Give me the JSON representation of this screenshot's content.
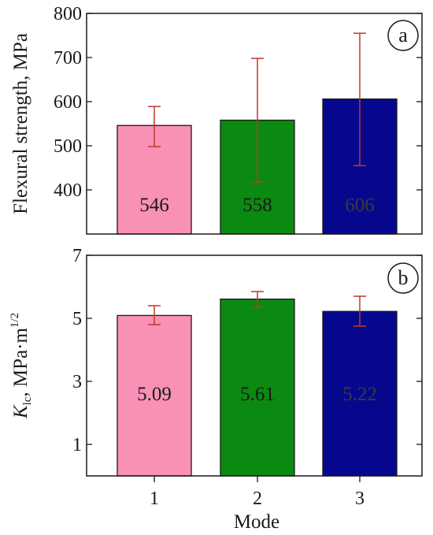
{
  "chart_data": [
    {
      "type": "bar",
      "panel_label": "a",
      "ylabel": "Flexural strength, MPa",
      "xlabel": "",
      "categories": [
        "1",
        "2",
        "3"
      ],
      "values": [
        546,
        558,
        606
      ],
      "value_labels": [
        "546",
        "558",
        "606"
      ],
      "error_low": [
        498,
        418,
        455
      ],
      "error_high": [
        589,
        698,
        755
      ],
      "ylim": [
        300,
        800
      ],
      "yticks": [
        400,
        500,
        600,
        700,
        800
      ],
      "ytick_labels": [
        "400",
        "500",
        "600",
        "700",
        "800"
      ],
      "colors": [
        "#f990b6",
        "#0a8a10",
        "#07078e"
      ],
      "label_colors": [
        "#1a1a1a",
        "#1a1a1a",
        "#3a3a3a"
      ],
      "error_color": "#c0392b"
    },
    {
      "type": "bar",
      "panel_label": "b",
      "ylabel": "K_lc , MPa·m^1/2",
      "ylabel_parts": {
        "k": "K",
        "sub": "lc",
        "unit": ", MPa·m",
        "sup": "1/2"
      },
      "xlabel": "Mode",
      "categories": [
        "1",
        "2",
        "3"
      ],
      "values": [
        5.09,
        5.61,
        5.22
      ],
      "value_labels": [
        "5.09",
        "5.61",
        "5.22"
      ],
      "error_low": [
        4.8,
        5.35,
        4.75
      ],
      "error_high": [
        5.4,
        5.85,
        5.7
      ],
      "ylim": [
        0,
        7
      ],
      "yticks": [
        1,
        3,
        5,
        7
      ],
      "ytick_labels": [
        "1",
        "3",
        "5",
        "7"
      ],
      "colors": [
        "#f990b6",
        "#0a8a10",
        "#07078e"
      ],
      "label_colors": [
        "#1a1a1a",
        "#1a1a1a",
        "#3a3a3a"
      ],
      "error_color": "#c0392b"
    }
  ]
}
